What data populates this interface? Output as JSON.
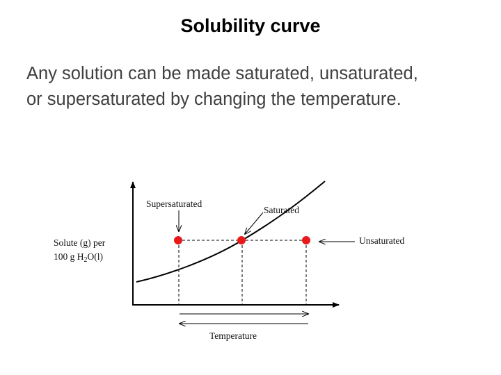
{
  "slide": {
    "title": "Solubility curve",
    "body_line_1": "Any solution can be made saturated, unsaturated,",
    "body_line_2": "or supersaturated by changing the temperature."
  },
  "diagram": {
    "labels": {
      "supersaturated": "Supersaturated",
      "saturated": "Saturated",
      "unsaturated": "Unsaturated",
      "y_axis_line_1": "Solute (g) per",
      "y_axis_line_2_prefix": "100 g H",
      "y_axis_line_2_sub": "2",
      "y_axis_line_2_suffix": "O(l)",
      "x_axis": "Temperature"
    },
    "colors": {
      "point": "#e8191b",
      "line": "#000000"
    }
  }
}
